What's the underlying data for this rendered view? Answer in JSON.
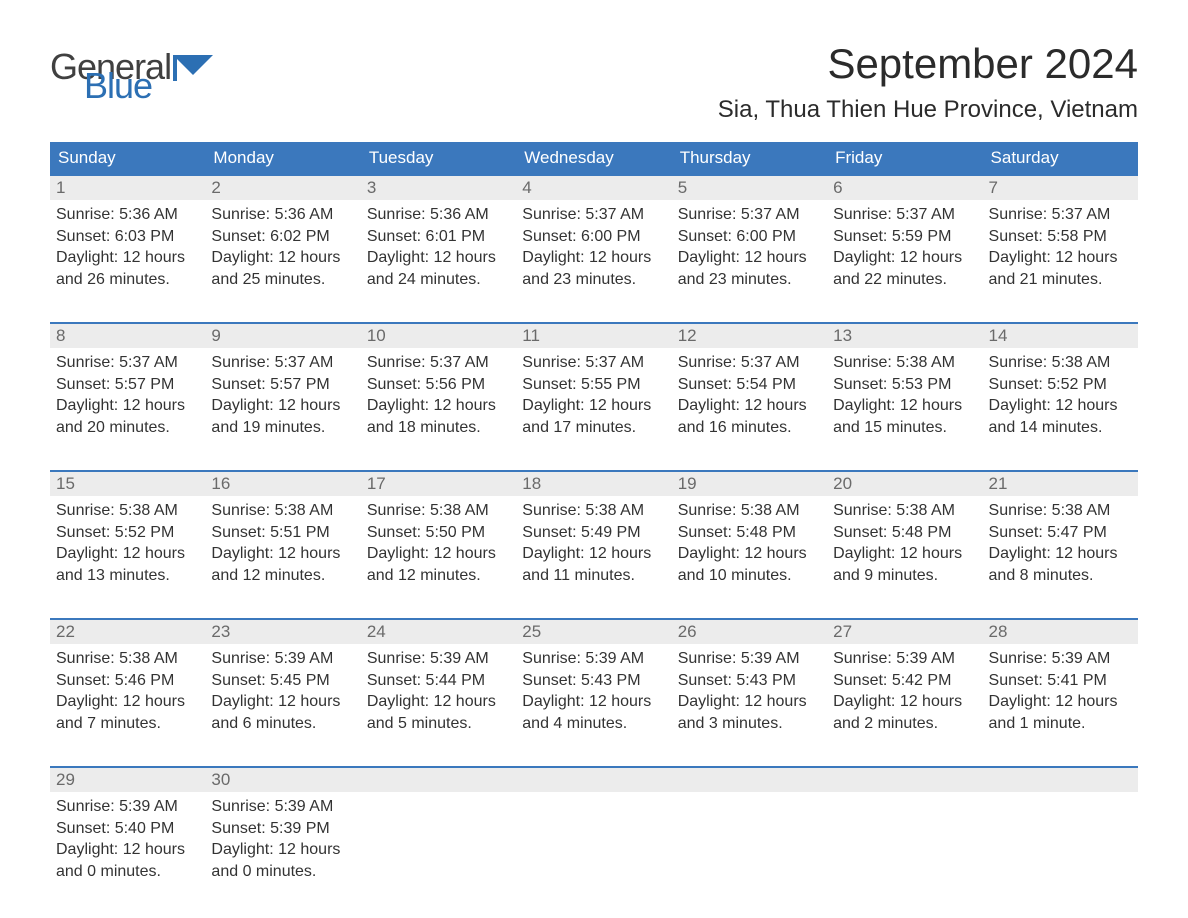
{
  "brand": {
    "line1": "General",
    "line2": "Blue",
    "flag_color": "#2c6fb3"
  },
  "title": "September 2024",
  "location": "Sia, Thua Thien Hue Province, Vietnam",
  "columns": [
    "Sunday",
    "Monday",
    "Tuesday",
    "Wednesday",
    "Thursday",
    "Friday",
    "Saturday"
  ],
  "colors": {
    "header_bg": "#3b78bd",
    "header_text": "#ffffff",
    "row_top_border": "#3b78bd",
    "daynum_bg": "#ececec",
    "daynum_text": "#6a6a6a",
    "body_text": "#333333",
    "background": "#ffffff"
  },
  "typography": {
    "title_fontsize": 42,
    "location_fontsize": 24,
    "header_fontsize": 17,
    "cell_fontsize": 16
  },
  "labels": {
    "sunrise": "Sunrise: ",
    "sunset": "Sunset: ",
    "daylight": "Daylight: "
  },
  "weeks": [
    [
      {
        "n": "1",
        "sunrise": "5:36 AM",
        "sunset": "6:03 PM",
        "daylight": "12 hours and 26 minutes."
      },
      {
        "n": "2",
        "sunrise": "5:36 AM",
        "sunset": "6:02 PM",
        "daylight": "12 hours and 25 minutes."
      },
      {
        "n": "3",
        "sunrise": "5:36 AM",
        "sunset": "6:01 PM",
        "daylight": "12 hours and 24 minutes."
      },
      {
        "n": "4",
        "sunrise": "5:37 AM",
        "sunset": "6:00 PM",
        "daylight": "12 hours and 23 minutes."
      },
      {
        "n": "5",
        "sunrise": "5:37 AM",
        "sunset": "6:00 PM",
        "daylight": "12 hours and 23 minutes."
      },
      {
        "n": "6",
        "sunrise": "5:37 AM",
        "sunset": "5:59 PM",
        "daylight": "12 hours and 22 minutes."
      },
      {
        "n": "7",
        "sunrise": "5:37 AM",
        "sunset": "5:58 PM",
        "daylight": "12 hours and 21 minutes."
      }
    ],
    [
      {
        "n": "8",
        "sunrise": "5:37 AM",
        "sunset": "5:57 PM",
        "daylight": "12 hours and 20 minutes."
      },
      {
        "n": "9",
        "sunrise": "5:37 AM",
        "sunset": "5:57 PM",
        "daylight": "12 hours and 19 minutes."
      },
      {
        "n": "10",
        "sunrise": "5:37 AM",
        "sunset": "5:56 PM",
        "daylight": "12 hours and 18 minutes."
      },
      {
        "n": "11",
        "sunrise": "5:37 AM",
        "sunset": "5:55 PM",
        "daylight": "12 hours and 17 minutes."
      },
      {
        "n": "12",
        "sunrise": "5:37 AM",
        "sunset": "5:54 PM",
        "daylight": "12 hours and 16 minutes."
      },
      {
        "n": "13",
        "sunrise": "5:38 AM",
        "sunset": "5:53 PM",
        "daylight": "12 hours and 15 minutes."
      },
      {
        "n": "14",
        "sunrise": "5:38 AM",
        "sunset": "5:52 PM",
        "daylight": "12 hours and 14 minutes."
      }
    ],
    [
      {
        "n": "15",
        "sunrise": "5:38 AM",
        "sunset": "5:52 PM",
        "daylight": "12 hours and 13 minutes."
      },
      {
        "n": "16",
        "sunrise": "5:38 AM",
        "sunset": "5:51 PM",
        "daylight": "12 hours and 12 minutes."
      },
      {
        "n": "17",
        "sunrise": "5:38 AM",
        "sunset": "5:50 PM",
        "daylight": "12 hours and 12 minutes."
      },
      {
        "n": "18",
        "sunrise": "5:38 AM",
        "sunset": "5:49 PM",
        "daylight": "12 hours and 11 minutes."
      },
      {
        "n": "19",
        "sunrise": "5:38 AM",
        "sunset": "5:48 PM",
        "daylight": "12 hours and 10 minutes."
      },
      {
        "n": "20",
        "sunrise": "5:38 AM",
        "sunset": "5:48 PM",
        "daylight": "12 hours and 9 minutes."
      },
      {
        "n": "21",
        "sunrise": "5:38 AM",
        "sunset": "5:47 PM",
        "daylight": "12 hours and 8 minutes."
      }
    ],
    [
      {
        "n": "22",
        "sunrise": "5:38 AM",
        "sunset": "5:46 PM",
        "daylight": "12 hours and 7 minutes."
      },
      {
        "n": "23",
        "sunrise": "5:39 AM",
        "sunset": "5:45 PM",
        "daylight": "12 hours and 6 minutes."
      },
      {
        "n": "24",
        "sunrise": "5:39 AM",
        "sunset": "5:44 PM",
        "daylight": "12 hours and 5 minutes."
      },
      {
        "n": "25",
        "sunrise": "5:39 AM",
        "sunset": "5:43 PM",
        "daylight": "12 hours and 4 minutes."
      },
      {
        "n": "26",
        "sunrise": "5:39 AM",
        "sunset": "5:43 PM",
        "daylight": "12 hours and 3 minutes."
      },
      {
        "n": "27",
        "sunrise": "5:39 AM",
        "sunset": "5:42 PM",
        "daylight": "12 hours and 2 minutes."
      },
      {
        "n": "28",
        "sunrise": "5:39 AM",
        "sunset": "5:41 PM",
        "daylight": "12 hours and 1 minute."
      }
    ],
    [
      {
        "n": "29",
        "sunrise": "5:39 AM",
        "sunset": "5:40 PM",
        "daylight": "12 hours and 0 minutes."
      },
      {
        "n": "30",
        "sunrise": "5:39 AM",
        "sunset": "5:39 PM",
        "daylight": "12 hours and 0 minutes."
      },
      {
        "n": "",
        "empty": true
      },
      {
        "n": "",
        "empty": true
      },
      {
        "n": "",
        "empty": true
      },
      {
        "n": "",
        "empty": true
      },
      {
        "n": "",
        "empty": true
      }
    ]
  ]
}
